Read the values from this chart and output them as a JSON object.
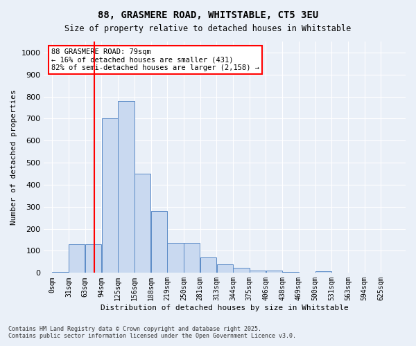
{
  "title1": "88, GRASMERE ROAD, WHITSTABLE, CT5 3EU",
  "title2": "Size of property relative to detached houses in Whitstable",
  "xlabel": "Distribution of detached houses by size in Whitstable",
  "ylabel": "Number of detached properties",
  "categories": [
    "0sqm",
    "31sqm",
    "63sqm",
    "94sqm",
    "125sqm",
    "156sqm",
    "188sqm",
    "219sqm",
    "250sqm",
    "281sqm",
    "313sqm",
    "344sqm",
    "375sqm",
    "406sqm",
    "438sqm",
    "469sqm",
    "500sqm",
    "531sqm",
    "563sqm",
    "594sqm",
    "625sqm"
  ],
  "values": [
    5,
    130,
    130,
    700,
    780,
    450,
    280,
    135,
    135,
    70,
    40,
    22,
    12,
    12,
    5,
    0,
    8,
    0,
    0,
    0,
    0
  ],
  "bar_color": "#c9d9f0",
  "bar_edge_color": "#5a8ac6",
  "red_line_x": 79,
  "bin_width": 31,
  "annotation_text": "88 GRASMERE ROAD: 79sqm\n← 16% of detached houses are smaller (431)\n82% of semi-detached houses are larger (2,158) →",
  "annotation_box_color": "white",
  "annotation_box_edge_color": "red",
  "ylim": [
    0,
    1050
  ],
  "yticks": [
    0,
    100,
    200,
    300,
    400,
    500,
    600,
    700,
    800,
    900,
    1000
  ],
  "background_color": "#eaf0f8",
  "grid_color": "white",
  "footer1": "Contains HM Land Registry data © Crown copyright and database right 2025.",
  "footer2": "Contains public sector information licensed under the Open Government Licence v3.0."
}
